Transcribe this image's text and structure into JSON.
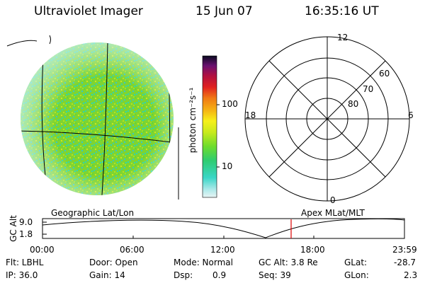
{
  "header": {
    "instrument": "Ultraviolet Imager",
    "date": "15 Jun 07",
    "time": "16:35:16 UT"
  },
  "colorbar": {
    "unit_label": "photon cm⁻²s⁻¹",
    "ticks": [
      "100",
      "10"
    ]
  },
  "polar_plot": {
    "mlt_labels": {
      "top": "12",
      "left": "18",
      "right": "6",
      "bottom": "0"
    },
    "lat_labels": [
      "60",
      "70",
      "80"
    ]
  },
  "panels": {
    "left_label": "Geographic Lat/Lon",
    "right_label": "Apex MLat/MLT"
  },
  "altitude_plot": {
    "axis_label": "GC Alt",
    "y_ticks": [
      "9.0",
      "1.8"
    ],
    "x_ticks": [
      "00:00",
      "06:00",
      "12:00",
      "18:00",
      "23:59"
    ],
    "marker_color": "#dd0000"
  },
  "footer": {
    "flt": "Flt: LBHL",
    "ip": "IP: 36.0",
    "door": "Door: Open",
    "gain": "Gain: 14",
    "mode": "Mode: Normal",
    "dsp_label": "Dsp:",
    "dsp_value": "0.9",
    "gc_alt": "GC Alt: 3.8 Re",
    "seq": "Seq: 39",
    "glat_label": "GLat:",
    "glat_value": "-28.7",
    "glon_label": "GLon:",
    "glon_value": "2.3"
  }
}
